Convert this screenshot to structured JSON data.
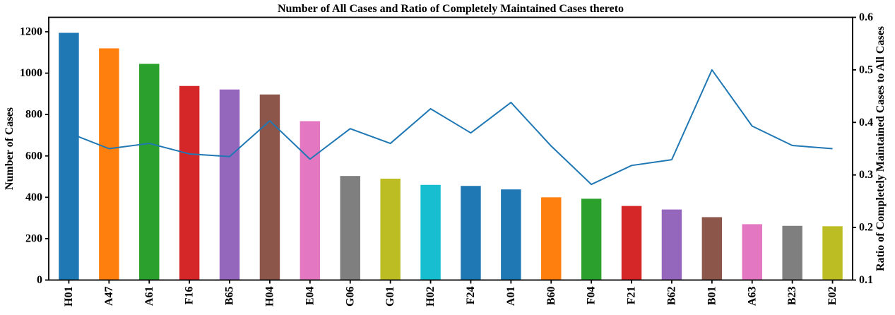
{
  "chart_data": {
    "type": "bar+line",
    "title": "Number of All Cases and Ratio of Completely Maintained Cases thereto",
    "ylabel_left": "Number of Cases",
    "ylabel_right": "Ratio of Completely Maintained Cases to All Cases",
    "categories": [
      "H01",
      "A47",
      "A61",
      "F16",
      "B65",
      "H04",
      "E04",
      "G06",
      "G01",
      "H02",
      "F24",
      "A01",
      "B60",
      "F04",
      "F21",
      "B62",
      "B01",
      "A63",
      "B23",
      "E02"
    ],
    "series": [
      {
        "name": "Number of All Cases",
        "type": "bar",
        "axis": "left",
        "values": [
          1195,
          1120,
          1045,
          938,
          921,
          897,
          768,
          503,
          490,
          460,
          455,
          438,
          400,
          393,
          358,
          341,
          304,
          270,
          262,
          260
        ],
        "colors": [
          "#1f77b4",
          "#ff7f0e",
          "#2ca02c",
          "#d62728",
          "#9467bd",
          "#8c564b",
          "#e377c2",
          "#7f7f7f",
          "#bcbd22",
          "#17becf",
          "#1f77b4",
          "#1f77b4",
          "#ff7f0e",
          "#2ca02c",
          "#d62728",
          "#9467bd",
          "#8c564b",
          "#e377c2",
          "#7f7f7f",
          "#bcbd22"
        ]
      },
      {
        "name": "Ratio of Completely Maintained Cases to All Cases",
        "type": "line",
        "axis": "right",
        "color": "#1f77b4",
        "values": [
          0.38,
          0.35,
          0.36,
          0.34,
          0.335,
          0.403,
          0.33,
          0.388,
          0.36,
          0.426,
          0.38,
          0.438,
          0.355,
          0.282,
          0.318,
          0.329,
          0.5,
          0.393,
          0.356,
          0.35
        ]
      }
    ],
    "axes": {
      "left": {
        "ticks": [
          0,
          200,
          400,
          600,
          800,
          1000,
          1200
        ],
        "range": [
          0,
          1270
        ],
        "tick_format": "integer"
      },
      "right": {
        "ticks": [
          0.1,
          0.2,
          0.3,
          0.4,
          0.5,
          0.6
        ],
        "range": [
          0.1,
          0.6
        ],
        "tick_format": "one_decimal"
      }
    },
    "x_tick_rotation": 90,
    "grid": false,
    "legend": "none",
    "text_color": "#000000",
    "spine_color": "#000000",
    "background": "#ffffff"
  }
}
